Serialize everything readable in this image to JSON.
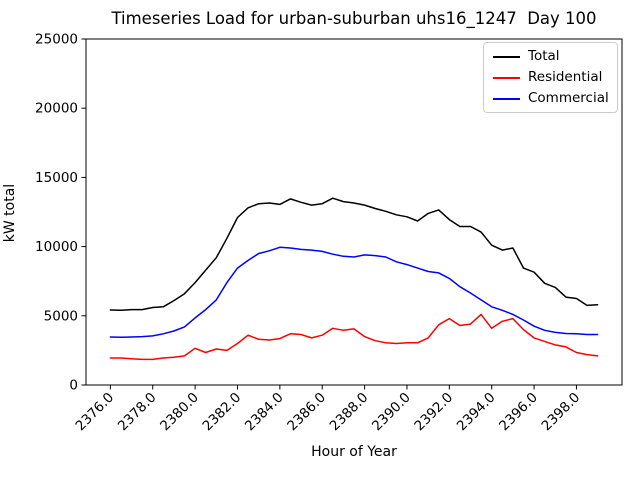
{
  "chart_data": {
    "type": "line",
    "title": "Timeseries Load for urban-suburban uhs16_1247  Day 100",
    "xlabel": "Hour of Year",
    "ylabel": "kW total",
    "grid": false,
    "legend_position": "upper right",
    "xlim": [
      2374.85,
      2400.15
    ],
    "ylim": [
      0,
      25000
    ],
    "x_tick_values": [
      2376,
      2378,
      2380,
      2382,
      2384,
      2386,
      2388,
      2390,
      2392,
      2394,
      2396,
      2398
    ],
    "x_tick_labels": [
      "2376.0",
      "2378.0",
      "2380.0",
      "2382.0",
      "2384.0",
      "2386.0",
      "2388.0",
      "2390.0",
      "2392.0",
      "2394.0",
      "2396.0",
      "2398.0"
    ],
    "y_tick_values": [
      0,
      5000,
      10000,
      15000,
      20000,
      25000
    ],
    "y_tick_labels": [
      "0",
      "5000",
      "10000",
      "15000",
      "20000",
      "25000"
    ],
    "x": [
      2376,
      2376.5,
      2377,
      2377.5,
      2378,
      2378.5,
      2379,
      2379.5,
      2380,
      2380.5,
      2381,
      2381.5,
      2382,
      2382.5,
      2383,
      2383.5,
      2384,
      2384.5,
      2385,
      2385.5,
      2386,
      2386.5,
      2387,
      2387.5,
      2388,
      2388.5,
      2389,
      2389.5,
      2390,
      2390.5,
      2391,
      2391.5,
      2392,
      2392.5,
      2393,
      2393.5,
      2394,
      2394.5,
      2395,
      2395.5,
      2396,
      2396.5,
      2397,
      2397.5,
      2398,
      2398.5,
      2399
    ],
    "series": [
      {
        "name": "Total",
        "color": "#000000",
        "values": [
          5420,
          5400,
          5450,
          5450,
          5600,
          5650,
          6100,
          6600,
          7400,
          8300,
          9200,
          10600,
          12100,
          12800,
          13100,
          13150,
          13050,
          13450,
          13200,
          13000,
          13100,
          13500,
          13250,
          13150,
          13000,
          12750,
          12550,
          12300,
          12150,
          11850,
          12400,
          12650,
          11950,
          11450,
          11450,
          11050,
          10100,
          9750,
          9900,
          8450,
          8150,
          7350,
          7050,
          6350,
          6250,
          5750,
          5800
        ]
      },
      {
        "name": "Residential",
        "color": "#ff0000",
        "values": [
          1950,
          1950,
          1900,
          1850,
          1850,
          1950,
          2000,
          2100,
          2650,
          2350,
          2600,
          2500,
          3000,
          3600,
          3300,
          3250,
          3350,
          3700,
          3650,
          3400,
          3600,
          4100,
          3950,
          4050,
          3500,
          3200,
          3050,
          3000,
          3050,
          3050,
          3400,
          4350,
          4800,
          4300,
          4400,
          5100,
          4100,
          4600,
          4800,
          4000,
          3400,
          3150,
          2900,
          2750,
          2350,
          2200,
          2100
        ]
      },
      {
        "name": "Commercial",
        "color": "#0000ff",
        "values": [
          3470,
          3450,
          3470,
          3500,
          3550,
          3700,
          3900,
          4200,
          4850,
          5450,
          6150,
          7400,
          8450,
          9000,
          9500,
          9700,
          9950,
          9900,
          9800,
          9750,
          9650,
          9450,
          9300,
          9250,
          9400,
          9350,
          9250,
          8900,
          8700,
          8450,
          8200,
          8100,
          7700,
          7100,
          6650,
          6150,
          5650,
          5400,
          5100,
          4700,
          4250,
          3950,
          3800,
          3720,
          3700,
          3650,
          3650
        ]
      }
    ],
    "line_width": 1.5
  }
}
